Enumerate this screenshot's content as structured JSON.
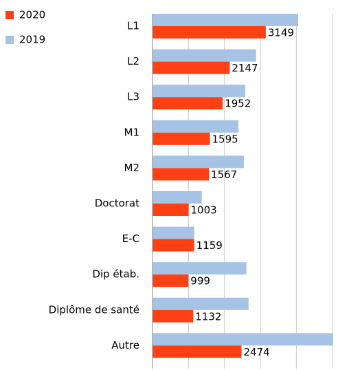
{
  "chart_data": {
    "type": "bar",
    "orientation": "horizontal",
    "categories": [
      "L1",
      "L2",
      "L3",
      "M1",
      "M2",
      "Doctorat",
      "E-C",
      "Dip étab.",
      "Diplôme de santé",
      "Autre"
    ],
    "series": [
      {
        "name": "2020",
        "color": "#ff4013",
        "values": [
          3149,
          2147,
          1952,
          1595,
          1567,
          1003,
          1159,
          999,
          1132,
          2474
        ]
      },
      {
        "name": "2019",
        "color": "#a6c3e6",
        "values": [
          4050,
          2880,
          2580,
          2390,
          2540,
          1370,
          1160,
          2610,
          2670,
          5020
        ]
      }
    ],
    "xlim": [
      0,
      5100
    ],
    "xticks": [
      0,
      1000,
      2000,
      3000,
      4000,
      5000
    ],
    "grid": true,
    "legend": "top-left"
  }
}
